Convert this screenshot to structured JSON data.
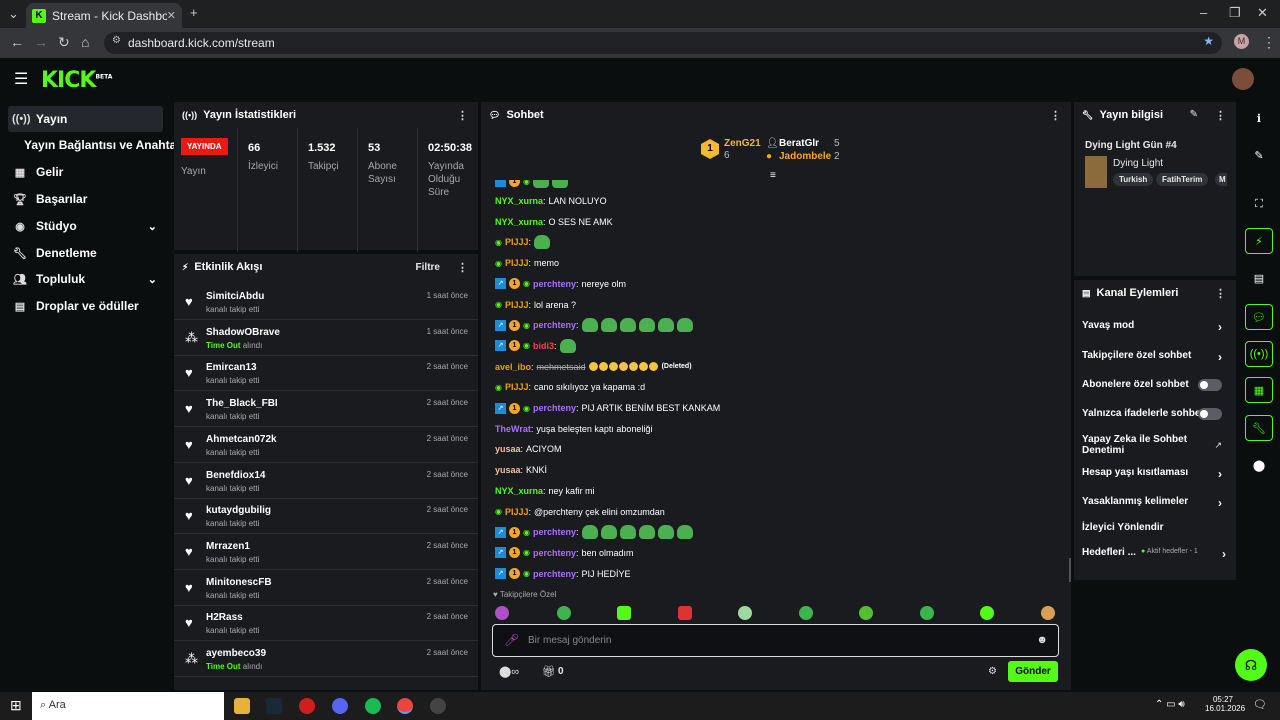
{
  "browser": {
    "tab_title": "Stream - Kick Dashboard",
    "url": "dashboard.kick.com/stream",
    "profile_initial": "M"
  },
  "app": {
    "logo": "KICK",
    "logo_tag": "BETA"
  },
  "nav": {
    "items": [
      {
        "label": "Yayın",
        "icon": "broadcast-icon"
      },
      {
        "label": "Yayın Bağlantısı ve Anahtarı",
        "icon": ""
      },
      {
        "label": "Gelir",
        "icon": "revenue-icon"
      },
      {
        "label": "Başarılar",
        "icon": "trophy-icon"
      },
      {
        "label": "Stüdyo",
        "icon": "studio-icon"
      },
      {
        "label": "Denetleme",
        "icon": "wrench-icon"
      },
      {
        "label": "Topluluk",
        "icon": "community-icon"
      },
      {
        "label": "Droplar ve ödüller",
        "icon": "drops-icon"
      }
    ]
  },
  "stats": {
    "title": "Yayın İstatistikleri",
    "live_badge": "YAYINDA",
    "live_label": "Yayın",
    "viewers": {
      "value": "66",
      "label": "İzleyici"
    },
    "followers": {
      "value": "1.532",
      "label": "Takipçi"
    },
    "subs": {
      "value": "53",
      "label1": "Abone",
      "label2": "Sayısı"
    },
    "uptime": {
      "value": "02:50:38",
      "label1": "Yayında",
      "label2": "Olduğu",
      "label3": "Süre"
    }
  },
  "activity": {
    "title": "Etkinlik Akışı",
    "filter": "Filtre",
    "events": [
      {
        "name": "SimitciAbdu",
        "sub": "kanalı takip etti",
        "time": "1 saat önce",
        "type": "follow"
      },
      {
        "name": "ShadowOBrave",
        "sub_b": "Time Out",
        "sub": " alındı",
        "time": "1 saat önce",
        "type": "timeout"
      },
      {
        "name": "Emircan13",
        "sub": "kanalı takip etti",
        "time": "2 saat önce",
        "type": "follow"
      },
      {
        "name": "The_Black_FBI",
        "sub": "kanalı takip etti",
        "time": "2 saat önce",
        "type": "follow"
      },
      {
        "name": "Ahmetcan072k",
        "sub": "kanalı takip etti",
        "time": "2 saat önce",
        "type": "follow"
      },
      {
        "name": "Benefdiox14",
        "sub": "kanalı takip etti",
        "time": "2 saat önce",
        "type": "follow"
      },
      {
        "name": "kutaydgubilig",
        "sub": "kanalı takip etti",
        "time": "2 saat önce",
        "type": "follow"
      },
      {
        "name": "Mrrazen1",
        "sub": "kanalı takip etti",
        "time": "2 saat önce",
        "type": "follow"
      },
      {
        "name": "MinitonescFB",
        "sub": "kanalı takip etti",
        "time": "2 saat önce",
        "type": "follow"
      },
      {
        "name": "H2Rass",
        "sub": "kanalı takip etti",
        "time": "2 saat önce",
        "type": "follow"
      },
      {
        "name": "ayembeco39",
        "sub_b": "Time Out",
        "sub": " alındı",
        "time": "2 saat önce",
        "type": "timeout"
      }
    ]
  },
  "chat": {
    "title": "Sohbet",
    "leaders": [
      {
        "name": "ZenG21",
        "count": "6"
      },
      {
        "name": "BeratGlr",
        "count": "5"
      },
      {
        "name": "Jadombele",
        "count": "2"
      }
    ],
    "messages": [
      {
        "user": "NYX_xurna",
        "color": "#53fc18",
        "text": "LAN NOLUYO"
      },
      {
        "user": "NYX_xurna",
        "color": "#53fc18",
        "text": "O SES NE AMK"
      },
      {
        "user": "PIJJJ",
        "color": "#f0a000",
        "text": "",
        "frogs": 1,
        "eye": true
      },
      {
        "user": "PIJJJ",
        "color": "#f0a000",
        "text": "memo",
        "eye": true
      },
      {
        "user": "perchteny",
        "color": "#a970ff",
        "text": "nereye olm",
        "badges": true
      },
      {
        "user": "PIJJJ",
        "color": "#f0a000",
        "text": "lol arena ?",
        "eye": true
      },
      {
        "user": "perchteny",
        "color": "#a970ff",
        "text": "",
        "frogs": 6,
        "badges": true
      },
      {
        "user": "bidi3",
        "color": "#ff4040",
        "text": "",
        "frogs": 1,
        "badges": true
      },
      {
        "user": "avel_ibo",
        "color": "#f0a000",
        "text": "mehmetsaid",
        "deleted": "(Deleted)",
        "emojis": 7
      },
      {
        "user": "PIJJJ",
        "color": "#f0a000",
        "text": "cano sıkılıyoz ya kapama :d",
        "eye": true
      },
      {
        "user": "perchteny",
        "color": "#a970ff",
        "text": "PIJ ARTIK BENİM BEST KANKAM",
        "badges": true
      },
      {
        "user": "TheWrat",
        "color": "#a970ff",
        "text": "yuşa beleşten kaptı aboneliği"
      },
      {
        "user": "yusaa",
        "color": "#f0c0a0",
        "text": "ACIYOM"
      },
      {
        "user": "yusaa",
        "color": "#f0c0a0",
        "text": "KNKİ"
      },
      {
        "user": "NYX_xurna",
        "color": "#53fc18",
        "text": "ney kafir mi"
      },
      {
        "user": "PIJJJ",
        "color": "#f0a000",
        "text": "@perchteny çek elini omzumdan",
        "eye": true
      },
      {
        "user": "perchteny",
        "color": "#a970ff",
        "text": "",
        "frogs": 6,
        "badges": true
      },
      {
        "user": "perchteny",
        "color": "#a970ff",
        "text": "ben olmadım",
        "badges": true
      },
      {
        "user": "perchteny",
        "color": "#a970ff",
        "text": "PIJ HEDİYE",
        "badges": true
      }
    ],
    "followers_only": "Takipçilere Özel",
    "input_placeholder": "Bir mesaj gönderin",
    "points": "0",
    "send": "Gönder"
  },
  "stream_info": {
    "title": "Yayın bilgisi",
    "stream_title": "Dying Light Gün #4",
    "game": "Dying Light",
    "tags": [
      "Turkish",
      "FatihTerim",
      "M"
    ]
  },
  "channel_actions": {
    "title": "Kanal Eylemleri",
    "items": [
      {
        "label": "Yavaş mod",
        "ctrl": "chevron"
      },
      {
        "label": "Takipçilere özel sohbet",
        "ctrl": "chevron"
      },
      {
        "label": "Abonelere özel sohbet",
        "ctrl": "toggle"
      },
      {
        "label": "Yalnızca ifadelerle sohbet",
        "ctrl": "toggle"
      },
      {
        "label": "Yapay Zeka ile Sohbet Denetimi",
        "ctrl": "external"
      },
      {
        "label": "Hesap yaşı kısıtlaması",
        "ctrl": "chevron"
      },
      {
        "label": "Yasaklanmış kelimeler",
        "ctrl": "chevron"
      },
      {
        "label": "İzleyici Yönlendir",
        "ctrl": "none"
      },
      {
        "label": "Hedefleri ...",
        "ctrl": "chevron",
        "extra": "Aktif hedefler - 1"
      }
    ]
  },
  "taskbar": {
    "search": "Ara",
    "time": "05:27",
    "date": "16.01.2026"
  },
  "colors": {
    "accent": "#53fc18",
    "live": "#e91916",
    "panel": "#191b1f"
  }
}
